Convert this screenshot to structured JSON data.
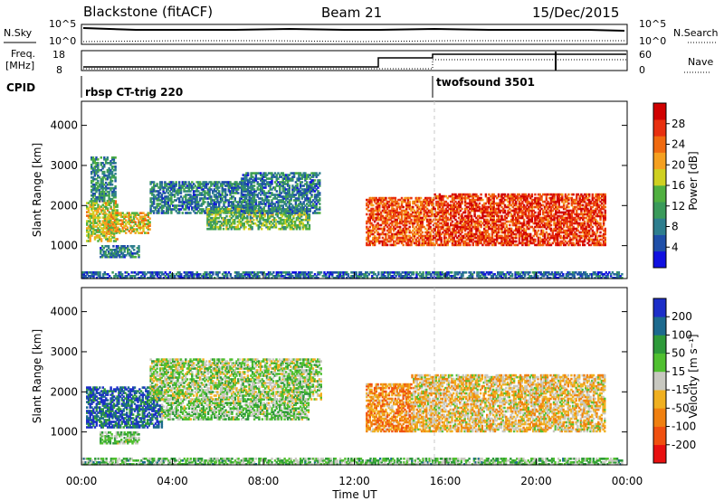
{
  "header": {
    "station": "Blackstone (fitACF)",
    "beam": "Beam 21",
    "date": "15/Dec/2015"
  },
  "params_panel": {
    "nsky_label": "N.Sky",
    "nsearch_label": "N.Search",
    "freq_label_1": "Freq.",
    "freq_label_2": "[MHz]",
    "nave_label": "Nave",
    "cpid_label": "CPID",
    "left_ticks_top": [
      "10^5",
      "10^0"
    ],
    "right_ticks_top": [
      "10^5",
      "10^0"
    ],
    "left_ticks_freq": [
      "18",
      "8"
    ],
    "right_ticks_nave": [
      "60",
      "0"
    ],
    "cpid_segments": [
      {
        "label": "rbsp CT-trig 220",
        "start_hour": 0,
        "end_hour": 15.5
      },
      {
        "label": "twofsound 3501",
        "start_hour": 15.5,
        "end_hour": 24
      }
    ]
  },
  "power_colorbar": {
    "label": "Power [dB]",
    "ticks": [
      "4",
      "8",
      "12",
      "16",
      "20",
      "24",
      "28"
    ],
    "colors": [
      "#1010e0",
      "#1f4fa8",
      "#2e7e8e",
      "#3a9a5a",
      "#50b040",
      "#cfd020",
      "#f5a020",
      "#f06a10",
      "#e83010",
      "#d00000"
    ]
  },
  "velocity_colorbar": {
    "label": "Velocity [m s⁻¹]",
    "ticks": [
      "200",
      "100",
      "50",
      "15",
      "-15",
      "-50",
      "-100",
      "-200"
    ],
    "colors": [
      "#1c2ec8",
      "#1c6a8e",
      "#2e9a3a",
      "#50c030",
      "#c8c8c0",
      "#f0b020",
      "#f08010",
      "#f05010",
      "#e81010"
    ]
  },
  "chart_data": [
    {
      "type": "heatmap",
      "name": "power",
      "ylabel": "Slant Range [km]",
      "ylim": [
        180,
        4600
      ],
      "xlim_hours": [
        0,
        24
      ],
      "y_ticks": [
        "1000",
        "2000",
        "3000",
        "4000"
      ],
      "bands": [
        {
          "t0": 0.2,
          "t1": 1.6,
          "r0": 1100,
          "r1": 2100,
          "level": 0.55
        },
        {
          "t0": 0.4,
          "t1": 1.5,
          "r0": 2100,
          "r1": 3200,
          "level": 0.3
        },
        {
          "t0": 1.0,
          "t1": 3.0,
          "r0": 1300,
          "r1": 1800,
          "level": 0.6
        },
        {
          "t0": 0.8,
          "t1": 2.5,
          "r0": 700,
          "r1": 1000,
          "level": 0.25
        },
        {
          "t0": 3.0,
          "t1": 7.5,
          "r0": 1800,
          "r1": 2600,
          "level": 0.25
        },
        {
          "t0": 5.5,
          "t1": 10.0,
          "r0": 1400,
          "r1": 1900,
          "level": 0.45
        },
        {
          "t0": 7.0,
          "t1": 10.5,
          "r0": 1800,
          "r1": 2800,
          "level": 0.25
        },
        {
          "t0": 12.5,
          "t1": 15.5,
          "r0": 1000,
          "r1": 2200,
          "level": 0.8
        },
        {
          "t0": 15.5,
          "t1": 23.0,
          "r0": 1000,
          "r1": 2300,
          "level": 0.85
        },
        {
          "t0": 0.0,
          "t1": 23.8,
          "r0": 180,
          "r1": 320,
          "level": 0.2
        }
      ],
      "x_ticks": [
        "00:00",
        "04:00",
        "08:00",
        "12:00",
        "16:00",
        "20:00",
        "00:00"
      ]
    },
    {
      "type": "heatmap",
      "name": "velocity",
      "ylabel": "Slant Range [km]",
      "xlabel": "Time UT",
      "ylim": [
        180,
        4600
      ],
      "xlim_hours": [
        0,
        24
      ],
      "y_ticks": [
        "1000",
        "2000",
        "3000",
        "4000"
      ],
      "bands": [
        {
          "t0": 0.2,
          "t1": 3.5,
          "r0": 1100,
          "r1": 2100,
          "level": 0.85
        },
        {
          "t0": 3.5,
          "t1": 10.0,
          "r0": 1300,
          "r1": 1800,
          "level": 0.6
        },
        {
          "t0": 0.8,
          "t1": 2.5,
          "r0": 700,
          "r1": 1000,
          "level": 0.6
        },
        {
          "t0": 3.0,
          "t1": 10.5,
          "r0": 1800,
          "r1": 2800,
          "level": 0.55
        },
        {
          "t0": 12.5,
          "t1": 14.5,
          "r0": 1000,
          "r1": 2200,
          "level": 0.3
        },
        {
          "t0": 14.5,
          "t1": 23.0,
          "r0": 1000,
          "r1": 2400,
          "level": 0.42
        },
        {
          "t0": 0.0,
          "t1": 23.8,
          "r0": 180,
          "r1": 350,
          "level": 0.62
        }
      ],
      "x_ticks": [
        "00:00",
        "04:00",
        "08:00",
        "12:00",
        "16:00",
        "20:00",
        "00:00"
      ]
    }
  ]
}
